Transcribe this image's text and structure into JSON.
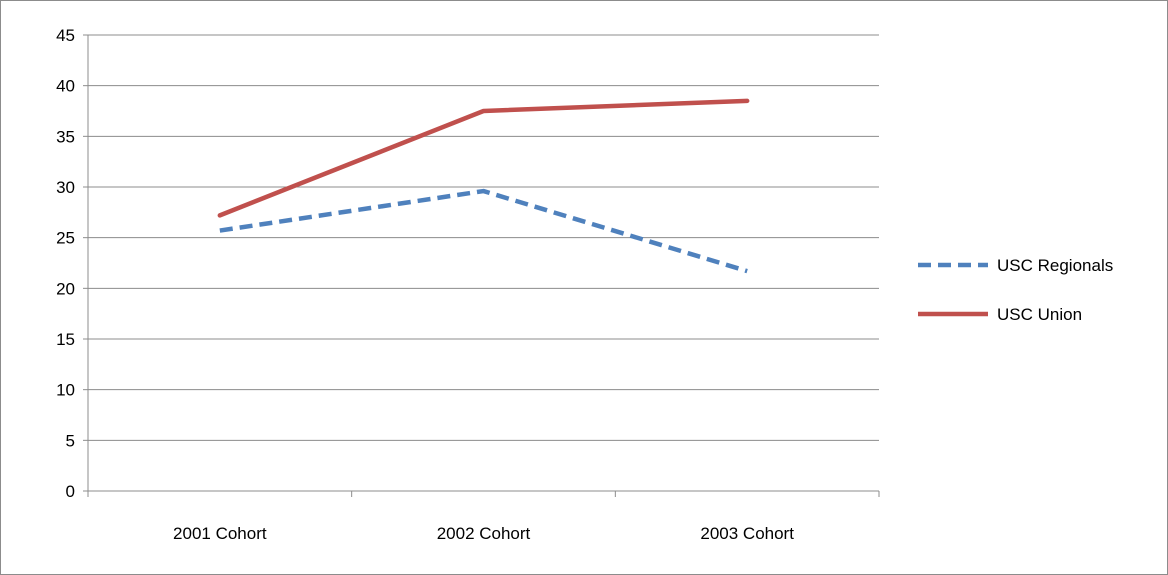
{
  "chart_data": {
    "type": "line",
    "title": "",
    "xlabel": "",
    "ylabel": "",
    "categories": [
      "2001 Cohort",
      "2002 Cohort",
      "2003 Cohort"
    ],
    "ylim": [
      0,
      45
    ],
    "yticks": [
      0,
      5,
      10,
      15,
      20,
      25,
      30,
      35,
      40,
      45
    ],
    "grid": true,
    "legend_position": "right",
    "series": [
      {
        "name": "USC Regionals",
        "values": [
          25.7,
          29.6,
          21.7
        ],
        "color": "#4f81bd",
        "style": "dashed"
      },
      {
        "name": "USC Union",
        "values": [
          27.2,
          37.5,
          38.5
        ],
        "color": "#c0504d",
        "style": "solid"
      }
    ]
  }
}
